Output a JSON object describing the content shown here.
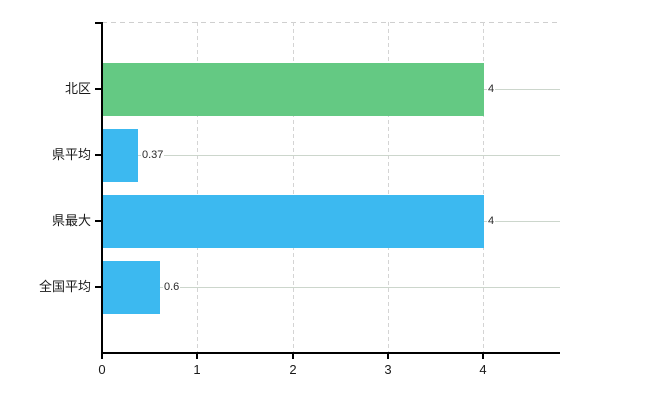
{
  "chart": {
    "background_color": "#ffffff",
    "axis_color": "#000000",
    "vertical_grid_color": "#d4d4d4",
    "horizontal_grid_color": "#ccd6cc",
    "top_frame_color": "#cfcfcf",
    "label_color": "#1a1a1a"
  },
  "chart_data": {
    "type": "bar",
    "orientation": "horizontal",
    "categories": [
      "北区",
      "県平均",
      "県最大",
      "全国平均"
    ],
    "values": [
      4,
      0.37,
      4,
      0.6
    ],
    "value_labels": [
      "4",
      "0.37",
      "4",
      "0.6"
    ],
    "bar_colors": [
      "#64c983",
      "#3cb9f0",
      "#3cb9f0",
      "#3cb9f0"
    ],
    "x_tick_labels": [
      "0",
      "1",
      "2",
      "3",
      "4"
    ],
    "x_tick_values": [
      0,
      1,
      2,
      3,
      4
    ],
    "xlim": [
      0,
      4.81
    ],
    "grid": true,
    "legend_visible": false,
    "title": ""
  }
}
